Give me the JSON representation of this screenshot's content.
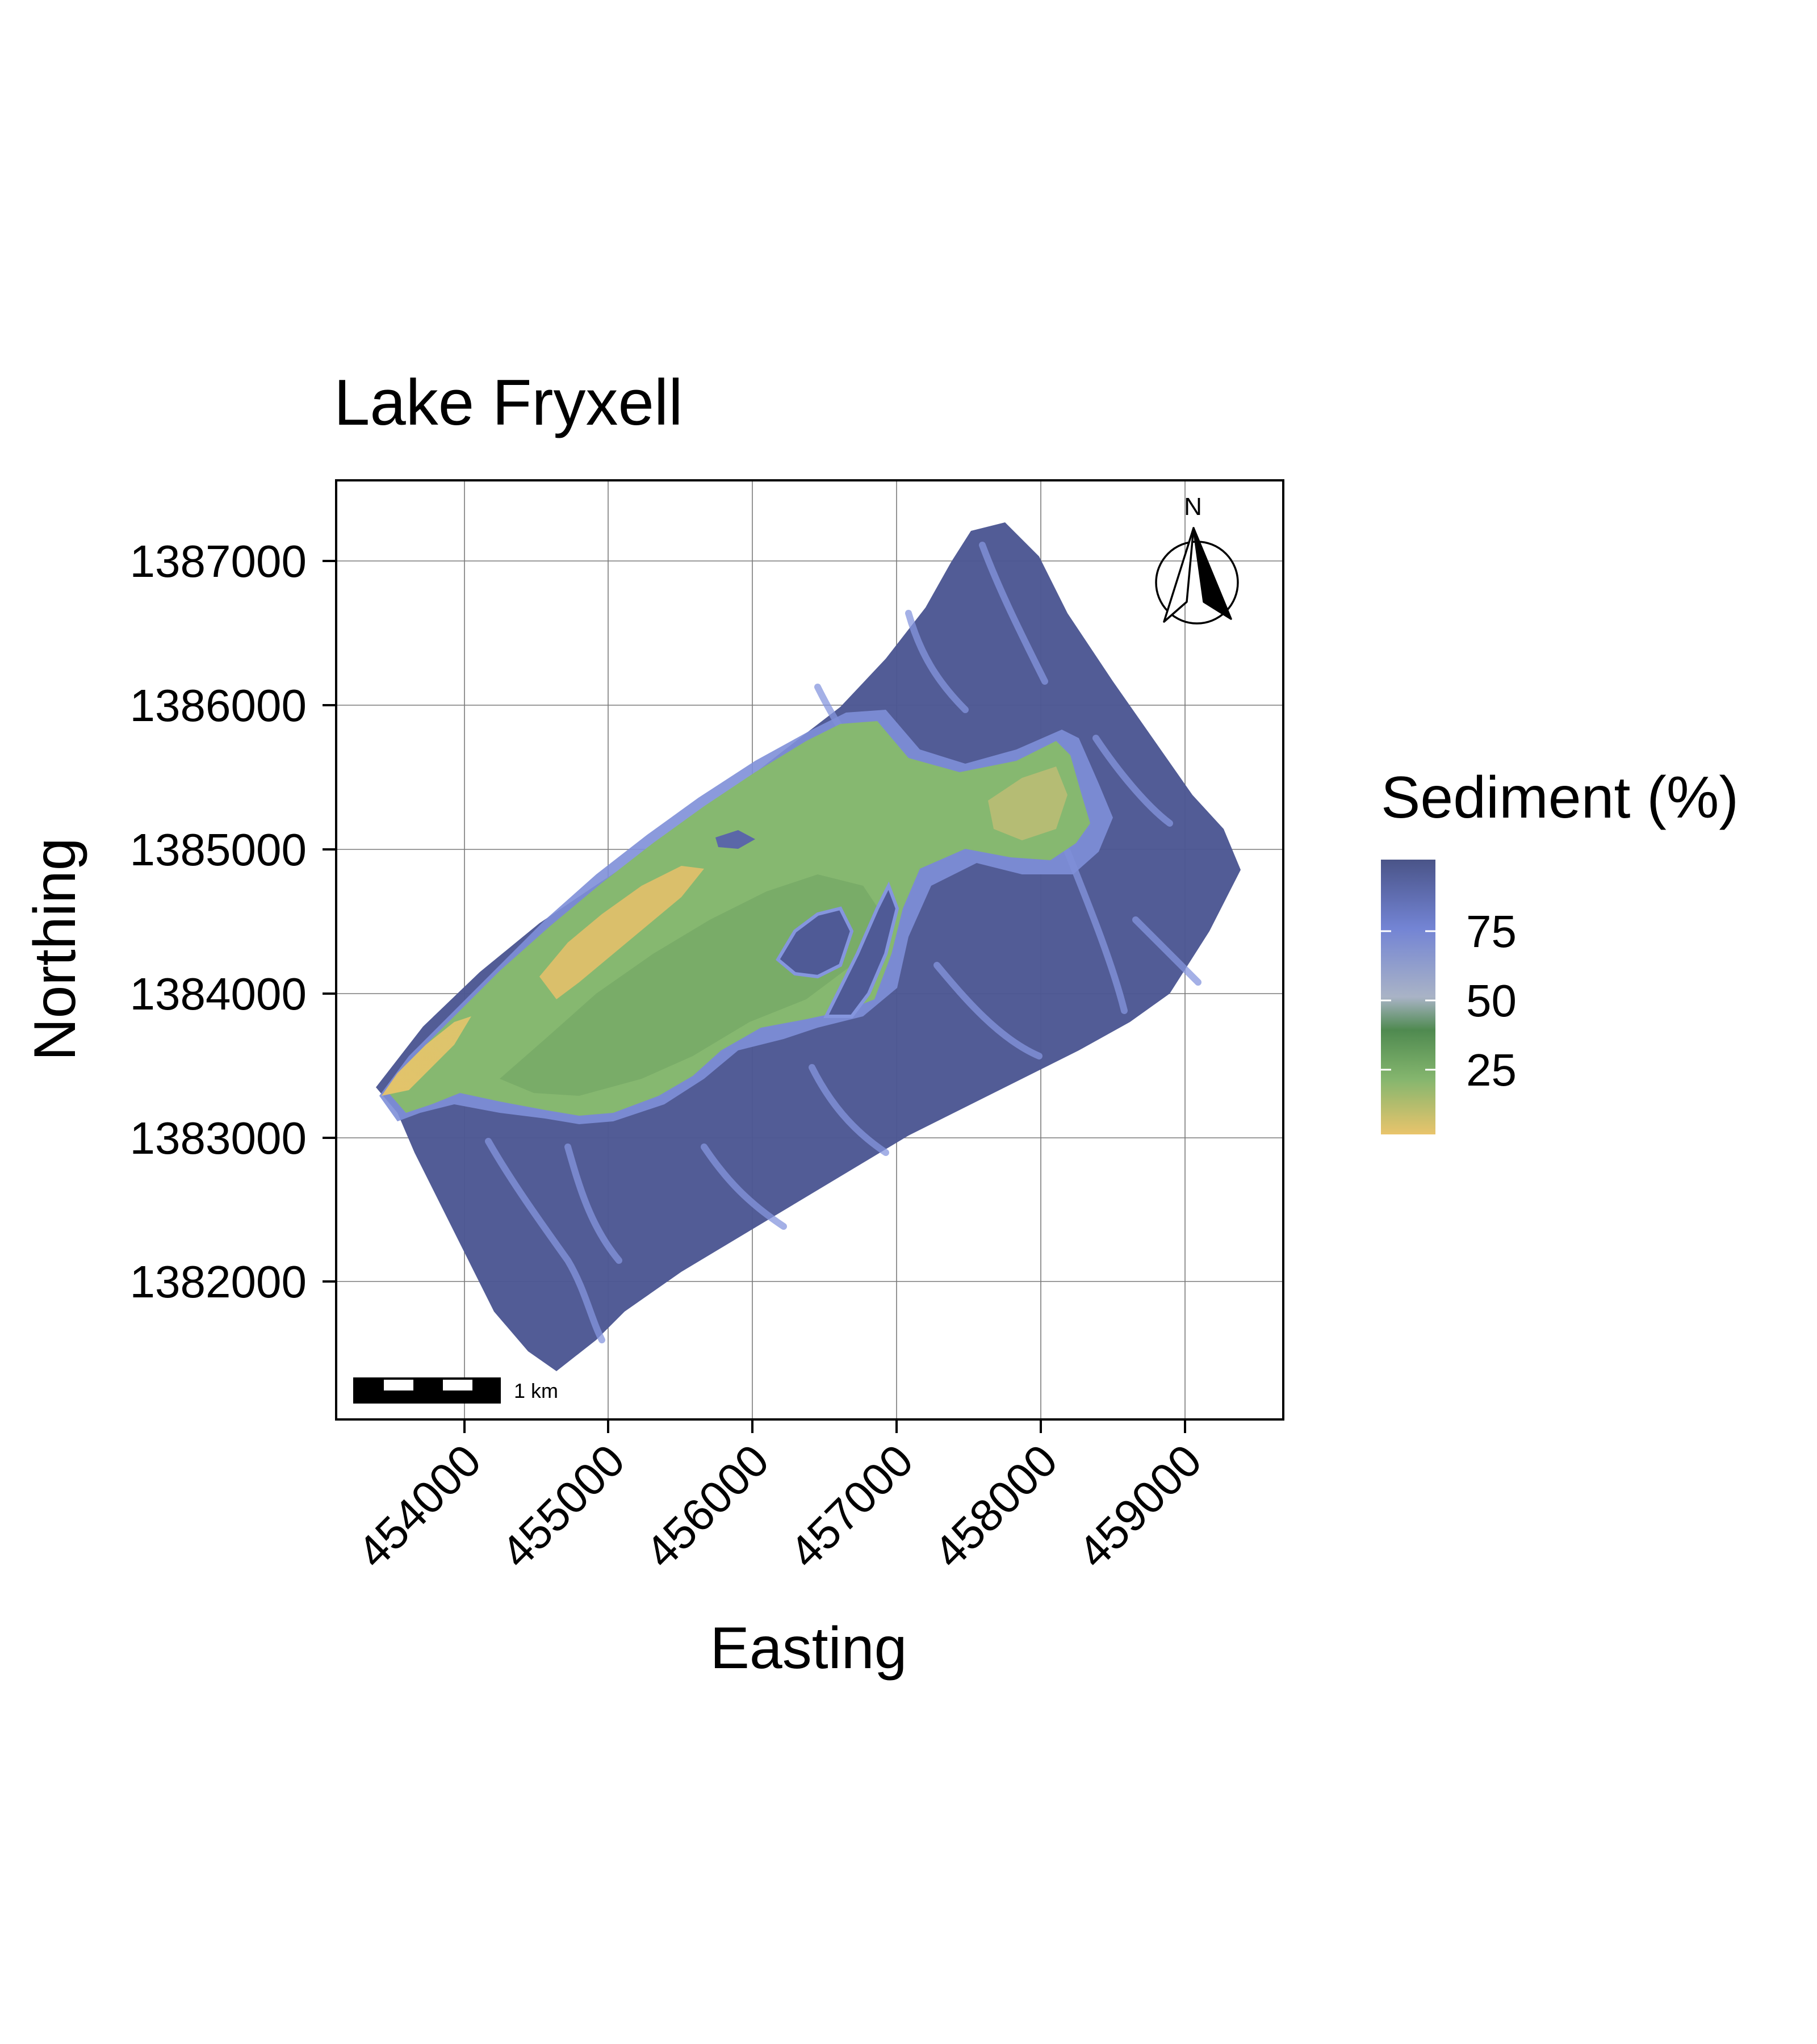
{
  "title": "Lake Fryxell",
  "xlabel": "Easting",
  "ylabel": "Northing",
  "x_ticks": [
    "454000",
    "455000",
    "456000",
    "457000",
    "458000",
    "459000"
  ],
  "y_ticks": [
    "1387000",
    "1386000",
    "1385000",
    "1384000",
    "1383000",
    "1382000"
  ],
  "legend": {
    "title": "Sediment (%)",
    "ticks": [
      "75",
      "50",
      "25"
    ],
    "colors": [
      "#4a5488",
      "#7384d4",
      "#a9b3c6",
      "#4f8a50",
      "#85b66e",
      "#e9c46c"
    ]
  },
  "north_arrow": {
    "label": "N",
    "icon": "north-arrow-icon"
  },
  "scale_bar": {
    "label": "1 km"
  },
  "colors": {
    "deep": "#4c5793",
    "mid": "#7e8fd8",
    "green": "#86b870",
    "yellow": "#e6c26c"
  }
}
